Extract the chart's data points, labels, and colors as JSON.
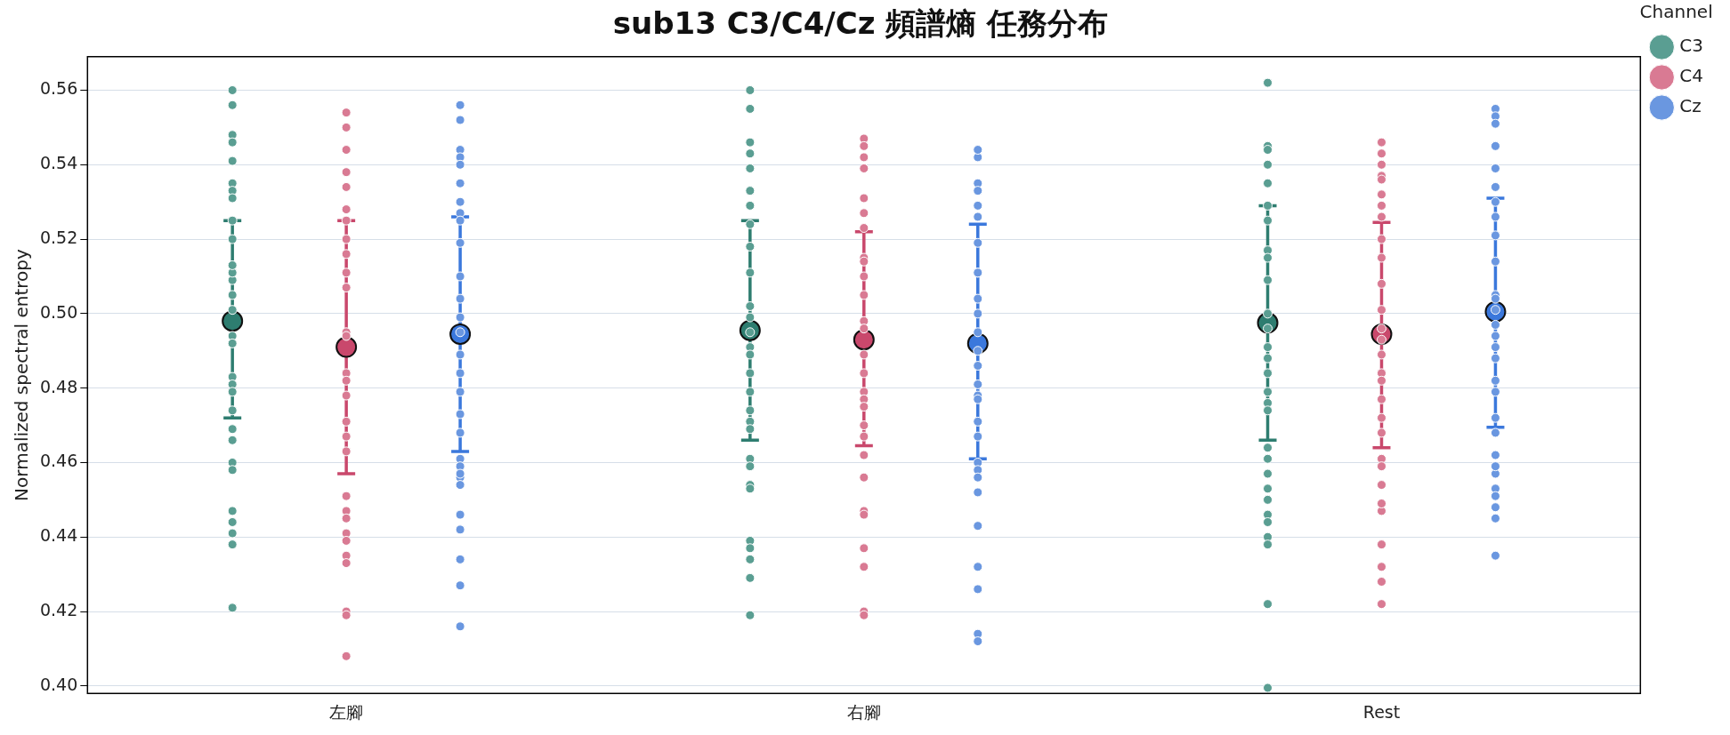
{
  "chart_data": {
    "type": "scatter",
    "title": "sub13 C3/C4/Cz 頻譜熵 任務分布",
    "ylabel": "Normalized spectral entropy",
    "legend_title": "Channel",
    "legend": "right",
    "grid": "y",
    "marker": "circle",
    "categories": [
      "左腳",
      "右腳",
      "Rest"
    ],
    "ylim": [
      0.398,
      0.569
    ],
    "yticks": [
      {
        "value": 0.4,
        "label": "0.40"
      },
      {
        "value": 0.42,
        "label": "0.42"
      },
      {
        "value": 0.44,
        "label": "0.44"
      },
      {
        "value": 0.46,
        "label": "0.46"
      },
      {
        "value": 0.48,
        "label": "0.48"
      },
      {
        "value": 0.5,
        "label": "0.50"
      },
      {
        "value": 0.52,
        "label": "0.52"
      },
      {
        "value": 0.54,
        "label": "0.54"
      },
      {
        "value": 0.56,
        "label": "0.56"
      }
    ],
    "series": [
      {
        "name": "C3",
        "color": "#5a9e92",
        "x": [
          "左腳",
          "左腳",
          "左腳",
          "左腳",
          "左腳",
          "左腳",
          "左腳",
          "左腳",
          "左腳",
          "左腳",
          "左腳",
          "左腳",
          "左腳",
          "左腳",
          "左腳",
          "左腳",
          "左腳",
          "左腳",
          "左腳",
          "左腳",
          "左腳",
          "左腳",
          "左腳",
          "左腳",
          "左腳",
          "左腳",
          "左腳",
          "左腳",
          "左腳",
          "左腳",
          "右腳",
          "右腳",
          "右腳",
          "右腳",
          "右腳",
          "右腳",
          "右腳",
          "右腳",
          "右腳",
          "右腳",
          "右腳",
          "右腳",
          "右腳",
          "右腳",
          "右腳",
          "右腳",
          "右腳",
          "右腳",
          "右腳",
          "右腳",
          "右腳",
          "右腳",
          "右腳",
          "右腳",
          "右腳",
          "右腳",
          "右腳",
          "右腳",
          "右腳",
          "Rest",
          "Rest",
          "Rest",
          "Rest",
          "Rest",
          "Rest",
          "Rest",
          "Rest",
          "Rest",
          "Rest",
          "Rest",
          "Rest",
          "Rest",
          "Rest",
          "Rest",
          "Rest",
          "Rest",
          "Rest",
          "Rest",
          "Rest",
          "Rest",
          "Rest",
          "Rest",
          "Rest",
          "Rest",
          "Rest",
          "Rest",
          "Rest",
          "Rest"
        ],
        "values": [
          0.56,
          0.556,
          0.548,
          0.546,
          0.541,
          0.535,
          0.533,
          0.531,
          0.525,
          0.509,
          0.511,
          0.513,
          0.505,
          0.494,
          0.492,
          0.483,
          0.481,
          0.479,
          0.474,
          0.466,
          0.46,
          0.458,
          0.447,
          0.444,
          0.441,
          0.438,
          0.421,
          0.469,
          0.52,
          0.501,
          0.56,
          0.555,
          0.546,
          0.543,
          0.539,
          0.533,
          0.529,
          0.524,
          0.518,
          0.511,
          0.499,
          0.502,
          0.495,
          0.491,
          0.489,
          0.484,
          0.479,
          0.474,
          0.471,
          0.469,
          0.461,
          0.459,
          0.454,
          0.453,
          0.439,
          0.437,
          0.434,
          0.429,
          0.419,
          0.562,
          0.545,
          0.544,
          0.54,
          0.535,
          0.529,
          0.525,
          0.517,
          0.515,
          0.509,
          0.5,
          0.496,
          0.491,
          0.488,
          0.484,
          0.479,
          0.476,
          0.474,
          0.464,
          0.461,
          0.457,
          0.453,
          0.45,
          0.446,
          0.444,
          0.44,
          0.438,
          0.422,
          0.3995
        ]
      },
      {
        "name": "C4",
        "color": "#d97a93",
        "x": [
          "左腳",
          "左腳",
          "左腳",
          "左腳",
          "左腳",
          "左腳",
          "左腳",
          "左腳",
          "左腳",
          "左腳",
          "左腳",
          "左腳",
          "左腳",
          "左腳",
          "左腳",
          "左腳",
          "左腳",
          "左腳",
          "左腳",
          "左腳",
          "左腳",
          "左腳",
          "左腳",
          "左腳",
          "左腳",
          "左腳",
          "左腳",
          "左腳",
          "左腳",
          "右腳",
          "右腳",
          "右腳",
          "右腳",
          "右腳",
          "右腳",
          "右腳",
          "右腳",
          "右腳",
          "右腳",
          "右腳",
          "右腳",
          "右腳",
          "右腳",
          "右腳",
          "右腳",
          "右腳",
          "右腳",
          "右腳",
          "右腳",
          "右腳",
          "右腳",
          "右腳",
          "右腳",
          "右腳",
          "右腳",
          "右腳",
          "右腳",
          "Rest",
          "Rest",
          "Rest",
          "Rest",
          "Rest",
          "Rest",
          "Rest",
          "Rest",
          "Rest",
          "Rest",
          "Rest",
          "Rest",
          "Rest",
          "Rest",
          "Rest",
          "Rest",
          "Rest",
          "Rest",
          "Rest",
          "Rest",
          "Rest",
          "Rest",
          "Rest",
          "Rest",
          "Rest",
          "Rest",
          "Rest",
          "Rest",
          "Rest"
        ],
        "values": [
          0.554,
          0.55,
          0.544,
          0.538,
          0.534,
          0.528,
          0.525,
          0.52,
          0.516,
          0.511,
          0.507,
          0.495,
          0.494,
          0.484,
          0.478,
          0.482,
          0.471,
          0.467,
          0.463,
          0.451,
          0.447,
          0.445,
          0.441,
          0.439,
          0.435,
          0.433,
          0.42,
          0.419,
          0.408,
          0.547,
          0.545,
          0.542,
          0.539,
          0.531,
          0.527,
          0.523,
          0.515,
          0.51,
          0.505,
          0.514,
          0.498,
          0.496,
          0.489,
          0.484,
          0.479,
          0.477,
          0.475,
          0.47,
          0.467,
          0.462,
          0.456,
          0.447,
          0.446,
          0.437,
          0.432,
          0.42,
          0.419,
          0.546,
          0.543,
          0.54,
          0.537,
          0.536,
          0.532,
          0.529,
          0.526,
          0.52,
          0.515,
          0.508,
          0.501,
          0.493,
          0.496,
          0.489,
          0.484,
          0.482,
          0.477,
          0.472,
          0.468,
          0.461,
          0.459,
          0.454,
          0.447,
          0.449,
          0.438,
          0.432,
          0.428,
          0.422
        ]
      },
      {
        "name": "Cz",
        "color": "#6a97e0",
        "x": [
          "左腳",
          "左腳",
          "左腳",
          "左腳",
          "左腳",
          "左腳",
          "左腳",
          "左腳",
          "左腳",
          "左腳",
          "左腳",
          "左腳",
          "左腳",
          "左腳",
          "左腳",
          "左腳",
          "左腳",
          "左腳",
          "左腳",
          "左腳",
          "左腳",
          "左腳",
          "左腳",
          "左腳",
          "左腳",
          "左腳",
          "左腳",
          "左腳",
          "左腳",
          "右腳",
          "右腳",
          "右腳",
          "右腳",
          "右腳",
          "右腳",
          "右腳",
          "右腳",
          "右腳",
          "右腳",
          "右腳",
          "右腳",
          "右腳",
          "右腳",
          "右腳",
          "右腳",
          "右腳",
          "右腳",
          "右腳",
          "右腳",
          "右腳",
          "右腳",
          "右腳",
          "右腳",
          "右腳",
          "右腳",
          "右腳",
          "右腳",
          "Rest",
          "Rest",
          "Rest",
          "Rest",
          "Rest",
          "Rest",
          "Rest",
          "Rest",
          "Rest",
          "Rest",
          "Rest",
          "Rest",
          "Rest",
          "Rest",
          "Rest",
          "Rest",
          "Rest",
          "Rest",
          "Rest",
          "Rest",
          "Rest",
          "Rest",
          "Rest",
          "Rest",
          "Rest",
          "Rest",
          "Rest",
          "Rest",
          "Rest"
        ],
        "values": [
          0.556,
          0.552,
          0.544,
          0.542,
          0.54,
          0.535,
          0.53,
          0.527,
          0.525,
          0.519,
          0.51,
          0.504,
          0.499,
          0.495,
          0.489,
          0.484,
          0.479,
          0.473,
          0.468,
          0.461,
          0.459,
          0.456,
          0.457,
          0.454,
          0.446,
          0.442,
          0.434,
          0.427,
          0.416,
          0.542,
          0.544,
          0.535,
          0.533,
          0.529,
          0.526,
          0.519,
          0.511,
          0.511,
          0.504,
          0.5,
          0.495,
          0.49,
          0.486,
          0.481,
          0.478,
          0.477,
          0.471,
          0.467,
          0.46,
          0.458,
          0.456,
          0.452,
          0.443,
          0.432,
          0.426,
          0.414,
          0.412,
          0.555,
          0.553,
          0.551,
          0.545,
          0.539,
          0.534,
          0.53,
          0.526,
          0.521,
          0.514,
          0.505,
          0.504,
          0.501,
          0.497,
          0.491,
          0.494,
          0.488,
          0.482,
          0.479,
          0.472,
          0.468,
          0.462,
          0.457,
          0.459,
          0.453,
          0.451,
          0.445,
          0.448,
          0.435
        ]
      },
      {
        "color": "#2e7d70",
        "x": [
          "左腳",
          "右腳",
          "Rest"
        ],
        "values": [
          0.498,
          0.4955,
          0.4975
        ],
        "errors": [
          [
            0.472,
            0.525
          ],
          [
            0.466,
            0.525
          ],
          [
            0.466,
            0.529
          ]
        ]
      },
      {
        "color": "#c9486c",
        "x": [
          "左腳",
          "右腳",
          "Rest"
        ],
        "values": [
          0.491,
          0.493,
          0.4945
        ],
        "errors": [
          [
            0.457,
            0.525
          ],
          [
            0.4645,
            0.522
          ],
          [
            0.464,
            0.5245
          ]
        ]
      },
      {
        "color": "#3b78dc",
        "x": [
          "左腳",
          "右腳",
          "Rest"
        ],
        "values": [
          0.4945,
          0.492,
          0.5005
        ],
        "errors": [
          [
            0.463,
            0.526
          ],
          [
            0.461,
            0.524
          ],
          [
            0.4695,
            0.531
          ]
        ]
      }
    ]
  }
}
